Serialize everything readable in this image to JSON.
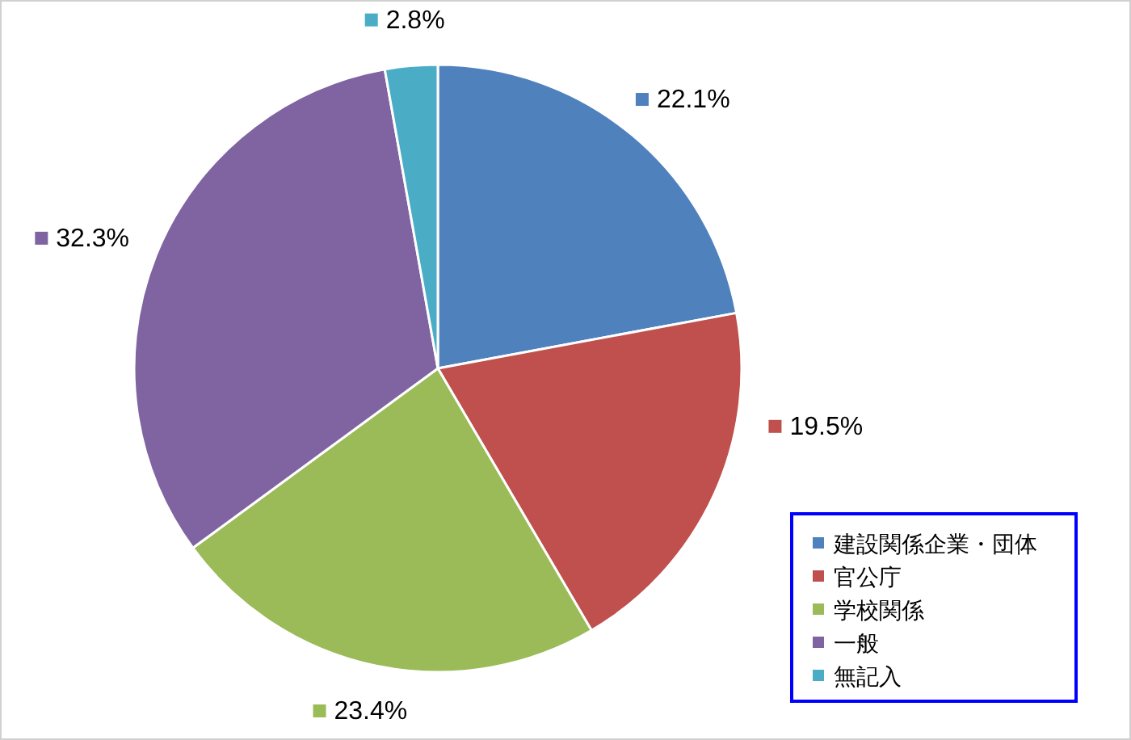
{
  "chart_data": {
    "type": "pie",
    "categories": [
      "建設関係企業・団体",
      "官公庁",
      "学校関係",
      "一般",
      "無記入"
    ],
    "values": [
      22.1,
      19.5,
      23.4,
      32.3,
      2.8
    ],
    "colors": [
      "#4f81bd",
      "#c0504d",
      "#9bbb59",
      "#8064a2",
      "#4bacc6"
    ],
    "value_labels": [
      "22.1%",
      "19.5%",
      "23.4%",
      "32.3%",
      "2.8%"
    ],
    "legend": "bottom right"
  }
}
